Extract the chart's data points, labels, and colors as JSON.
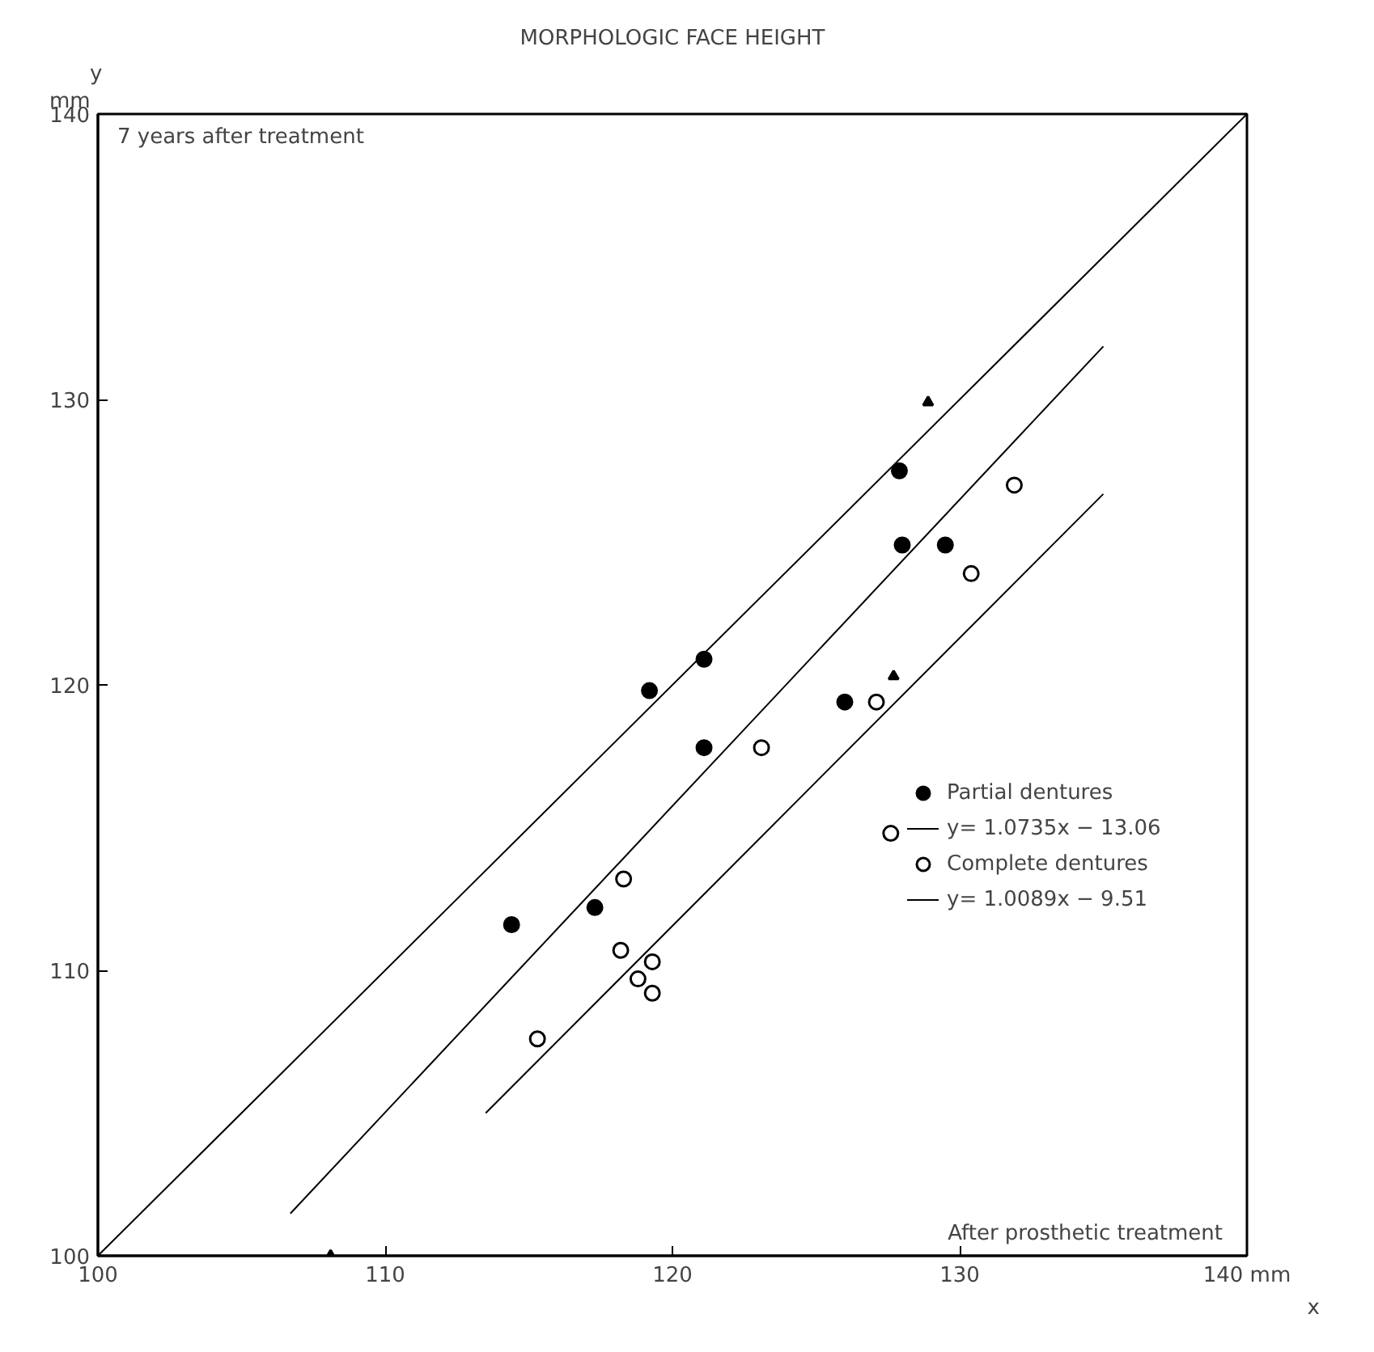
{
  "chart_data": {
    "type": "scatter",
    "title": "MORPHOLOGIC FACE HEIGHT",
    "xlabel": "x",
    "ylabel": "y",
    "xlim": [
      100,
      140
    ],
    "ylim": [
      100,
      140
    ],
    "xticks": [
      100,
      110,
      120,
      130,
      {
        "value": 140,
        "label": "140 mm"
      }
    ],
    "yticks": [
      100,
      110,
      120,
      130,
      140
    ],
    "grid": false,
    "legend": "right",
    "annotations": [
      "7 years after treatment",
      "After prosthetic treatment",
      "mm"
    ],
    "series": [
      {
        "name": "Partial dentures",
        "color": "#000000",
        "marker": "circle",
        "x": [
          114.4,
          117.3,
          119.2,
          121.1,
          121.1,
          126.0,
          127.9,
          128.0,
          129.5
        ],
        "values": [
          111.6,
          112.2,
          119.8,
          120.9,
          117.8,
          119.4,
          127.5,
          124.9,
          124.9
        ]
      },
      {
        "name": "y= 1.0735x − 13.06",
        "type": "line",
        "color": "#000000",
        "x": [
          106.7,
          135.0
        ],
        "values": [
          101.48,
          131.86
        ]
      },
      {
        "name": "Complete dentures",
        "color": "#ffffff",
        "marker": "circle",
        "x": [
          115.3,
          118.2,
          118.3,
          118.8,
          119.3,
          119.3,
          123.1,
          127.1,
          127.6,
          130.4,
          131.9
        ],
        "values": [
          107.6,
          110.7,
          113.2,
          109.7,
          110.3,
          109.2,
          117.8,
          119.4,
          114.8,
          123.9,
          127.0
        ]
      },
      {
        "name": "y= 1.0089x − 9.51",
        "type": "line",
        "color": "#000000",
        "x": [
          113.5,
          135.0
        ],
        "values": [
          105.0,
          126.69
        ]
      },
      {
        "type": "line",
        "color": "#000000",
        "x": [
          100,
          140
        ],
        "values": [
          100,
          140
        ]
      },
      {
        "color": "#000000",
        "marker": "triangle",
        "x": [
          108.1,
          127.7,
          128.9
        ],
        "values": [
          100,
          120.3,
          129.9
        ]
      }
    ]
  }
}
